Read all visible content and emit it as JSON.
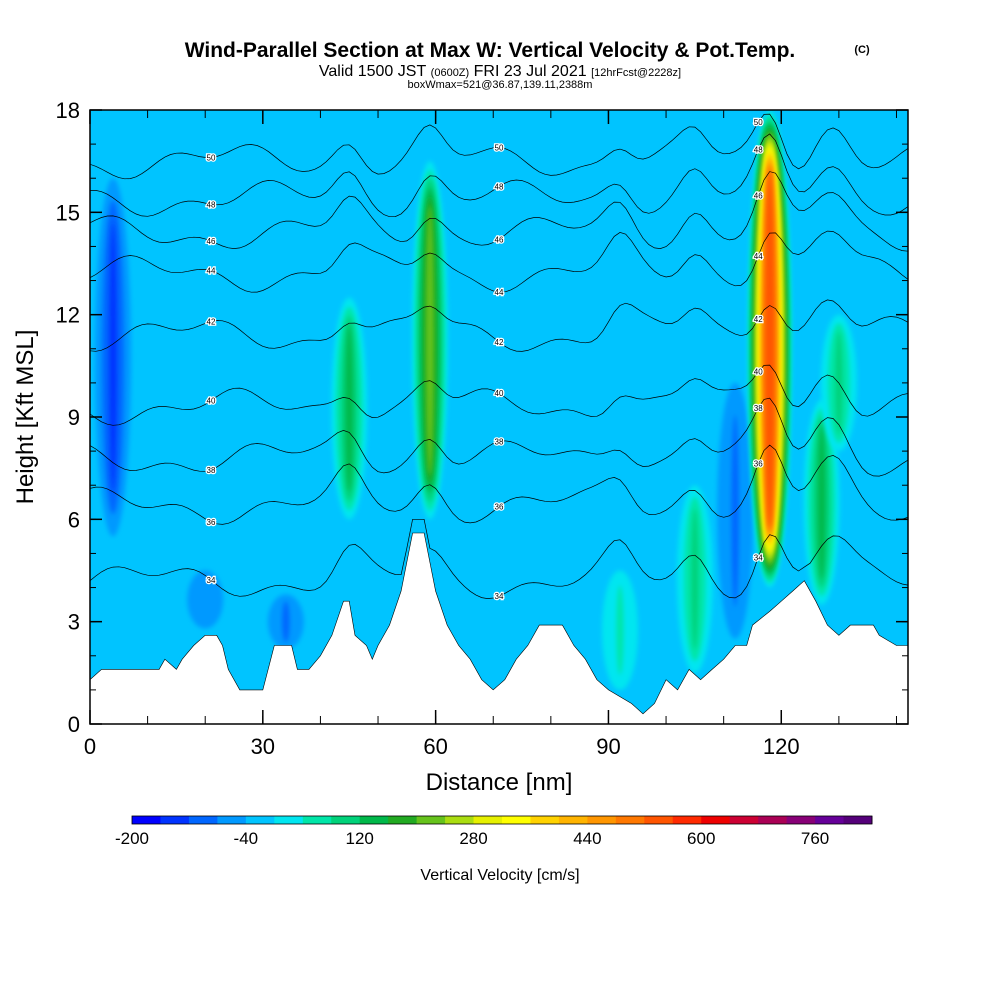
{
  "chart_data": {
    "type": "heatmap",
    "title": "Wind-Parallel Section at Max W: Vertical Velocity & Pot.Temp.",
    "title_mark": "(C)",
    "subtitle": {
      "valid": "Valid 1500 JST",
      "utc": "(0600Z)",
      "date": "FRI 23 Jul 2021",
      "fcst": "[12hrFcst@2228z]"
    },
    "subtitle2": "boxWmax=521@36.87,139.11,2388m",
    "xlabel": "Distance [nm]",
    "ylabel": "Height [Kft MSL]",
    "xlim": [
      0,
      142
    ],
    "ylim": [
      0,
      18
    ],
    "x_ticks": [
      0,
      30,
      60,
      90,
      120
    ],
    "y_ticks": [
      0,
      3,
      6,
      9,
      12,
      15,
      18
    ],
    "colorbar": {
      "label": "Vertical Velocity [cm/s]",
      "min": -200,
      "step": 40,
      "tick_values": [
        -200,
        -40,
        120,
        280,
        440,
        600,
        760
      ],
      "colors": [
        "#0000ff",
        "#0033ff",
        "#0066ff",
        "#0099ff",
        "#00c4ff",
        "#00e6f0",
        "#00e6a8",
        "#00d27a",
        "#00b84a",
        "#22aa22",
        "#66c31c",
        "#aadd11",
        "#e6f000",
        "#ffff00",
        "#ffd200",
        "#ffb400",
        "#ff9600",
        "#ff7800",
        "#ff5500",
        "#ff2a00",
        "#ee0000",
        "#cc0033",
        "#aa0055",
        "#880077",
        "#660099",
        "#55007a"
      ]
    },
    "updrafts": [
      {
        "x": 4,
        "w_cm_s": -120,
        "z_bottom": 5.5,
        "z_top": 16
      },
      {
        "x": 20,
        "w_cm_s": -60,
        "z_bottom": 2.8,
        "z_top": 4.5
      },
      {
        "x": 34,
        "w_cm_s": -80,
        "z_bottom": 2.2,
        "z_top": 3.8
      },
      {
        "x": 45,
        "w_cm_s": 120,
        "z_bottom": 6.0,
        "z_top": 12.5
      },
      {
        "x": 59,
        "w_cm_s": 200,
        "z_bottom": 6.0,
        "z_top": 16.5
      },
      {
        "x": 92,
        "w_cm_s": 40,
        "z_bottom": 1.0,
        "z_top": 4.5
      },
      {
        "x": 105,
        "w_cm_s": 80,
        "z_bottom": 1.5,
        "z_top": 7.0
      },
      {
        "x": 112,
        "w_cm_s": -100,
        "z_bottom": 2.5,
        "z_top": 10.0
      },
      {
        "x": 118,
        "w_cm_s": 521,
        "z_bottom": 4.0,
        "z_top": 18.0
      },
      {
        "x": 127,
        "w_cm_s": 120,
        "z_bottom": 3.5,
        "z_top": 9.5
      },
      {
        "x": 130,
        "w_cm_s": 80,
        "z_bottom": 8.0,
        "z_top": 12.0
      }
    ],
    "isentropes": [
      {
        "label": "34",
        "z_ref": 4.2
      },
      {
        "label": "36",
        "z_ref": 6.4
      },
      {
        "label": "38",
        "z_ref": 7.8
      },
      {
        "label": "40",
        "z_ref": 9.3
      },
      {
        "label": "42",
        "z_ref": 11.4
      },
      {
        "label": "44",
        "z_ref": 13.2
      },
      {
        "label": "46",
        "z_ref": 14.4
      },
      {
        "label": "48",
        "z_ref": 15.4
      },
      {
        "label": "50",
        "z_ref": 16.5
      }
    ],
    "terrain": [
      {
        "x": 0,
        "z": 1.3
      },
      {
        "x": 2,
        "z": 1.6
      },
      {
        "x": 12,
        "z": 1.6
      },
      {
        "x": 13,
        "z": 1.9
      },
      {
        "x": 15,
        "z": 1.6
      },
      {
        "x": 16,
        "z": 1.9
      },
      {
        "x": 18,
        "z": 2.3
      },
      {
        "x": 20,
        "z": 2.6
      },
      {
        "x": 22,
        "z": 2.6
      },
      {
        "x": 23,
        "z": 2.3
      },
      {
        "x": 24,
        "z": 1.6
      },
      {
        "x": 26,
        "z": 1.0
      },
      {
        "x": 30,
        "z": 1.0
      },
      {
        "x": 32,
        "z": 2.3
      },
      {
        "x": 35,
        "z": 2.3
      },
      {
        "x": 36,
        "z": 1.6
      },
      {
        "x": 38,
        "z": 1.6
      },
      {
        "x": 40,
        "z": 2.0
      },
      {
        "x": 42,
        "z": 2.6
      },
      {
        "x": 44,
        "z": 3.6
      },
      {
        "x": 45,
        "z": 3.6
      },
      {
        "x": 46,
        "z": 2.6
      },
      {
        "x": 48,
        "z": 2.3
      },
      {
        "x": 49,
        "z": 1.9
      },
      {
        "x": 50,
        "z": 2.3
      },
      {
        "x": 52,
        "z": 2.9
      },
      {
        "x": 54,
        "z": 3.9
      },
      {
        "x": 56,
        "z": 5.6
      },
      {
        "x": 58,
        "z": 5.6
      },
      {
        "x": 60,
        "z": 3.9
      },
      {
        "x": 62,
        "z": 2.9
      },
      {
        "x": 64,
        "z": 2.3
      },
      {
        "x": 66,
        "z": 1.9
      },
      {
        "x": 68,
        "z": 1.3
      },
      {
        "x": 70,
        "z": 1.0
      },
      {
        "x": 72,
        "z": 1.3
      },
      {
        "x": 74,
        "z": 1.9
      },
      {
        "x": 76,
        "z": 2.3
      },
      {
        "x": 78,
        "z": 2.9
      },
      {
        "x": 82,
        "z": 2.9
      },
      {
        "x": 84,
        "z": 2.3
      },
      {
        "x": 86,
        "z": 1.9
      },
      {
        "x": 88,
        "z": 1.3
      },
      {
        "x": 90,
        "z": 1.0
      },
      {
        "x": 94,
        "z": 0.6
      },
      {
        "x": 96,
        "z": 0.3
      },
      {
        "x": 98,
        "z": 0.6
      },
      {
        "x": 100,
        "z": 1.3
      },
      {
        "x": 102,
        "z": 1.0
      },
      {
        "x": 104,
        "z": 1.6
      },
      {
        "x": 106,
        "z": 1.3
      },
      {
        "x": 108,
        "z": 1.6
      },
      {
        "x": 110,
        "z": 1.9
      },
      {
        "x": 112,
        "z": 2.3
      },
      {
        "x": 114,
        "z": 2.3
      },
      {
        "x": 115,
        "z": 2.9
      },
      {
        "x": 118,
        "z": 3.3
      },
      {
        "x": 120,
        "z": 3.6
      },
      {
        "x": 122,
        "z": 3.9
      },
      {
        "x": 124,
        "z": 4.2
      },
      {
        "x": 126,
        "z": 3.6
      },
      {
        "x": 128,
        "z": 2.9
      },
      {
        "x": 130,
        "z": 2.6
      },
      {
        "x": 132,
        "z": 2.9
      },
      {
        "x": 136,
        "z": 2.9
      },
      {
        "x": 137,
        "z": 2.6
      },
      {
        "x": 140,
        "z": 2.3
      },
      {
        "x": 142,
        "z": 2.3
      }
    ]
  }
}
